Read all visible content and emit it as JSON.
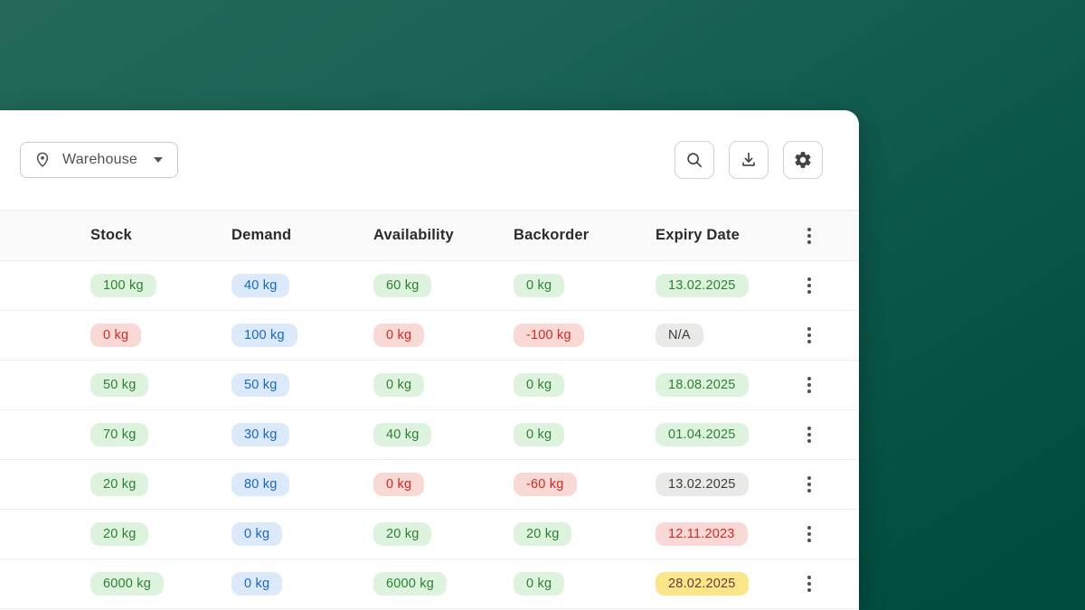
{
  "panel": {
    "toolbar": {
      "warehouse_button": {
        "label": "Warehouse",
        "icon": "location-pin-icon"
      },
      "actions": [
        {
          "name": "search",
          "icon": "search-icon"
        },
        {
          "name": "download",
          "icon": "download-icon"
        },
        {
          "name": "settings",
          "icon": "gear-icon"
        }
      ]
    },
    "table": {
      "columns": [
        "Stock",
        "Demand",
        "Availability",
        "Backorder",
        "Expiry Date"
      ],
      "rows": [
        {
          "cells": [
            {
              "text": "100 kg",
              "variant": "green"
            },
            {
              "text": "40 kg",
              "variant": "blue"
            },
            {
              "text": "60 kg",
              "variant": "green"
            },
            {
              "text": "0 kg",
              "variant": "green"
            },
            {
              "text": "13.02.2025",
              "variant": "green"
            }
          ]
        },
        {
          "cells": [
            {
              "text": "0 kg",
              "variant": "red"
            },
            {
              "text": "100 kg",
              "variant": "blue"
            },
            {
              "text": "0 kg",
              "variant": "red"
            },
            {
              "text": "-100 kg",
              "variant": "red"
            },
            {
              "text": "N/A",
              "variant": "gray"
            }
          ]
        },
        {
          "cells": [
            {
              "text": "50 kg",
              "variant": "green"
            },
            {
              "text": "50 kg",
              "variant": "blue"
            },
            {
              "text": "0 kg",
              "variant": "green"
            },
            {
              "text": "0 kg",
              "variant": "green"
            },
            {
              "text": "18.08.2025",
              "variant": "green"
            }
          ]
        },
        {
          "cells": [
            {
              "text": "70 kg",
              "variant": "green"
            },
            {
              "text": "30 kg",
              "variant": "blue"
            },
            {
              "text": "40 kg",
              "variant": "green"
            },
            {
              "text": "0 kg",
              "variant": "green"
            },
            {
              "text": "01.04.2025",
              "variant": "green"
            }
          ]
        },
        {
          "cells": [
            {
              "text": "20 kg",
              "variant": "green"
            },
            {
              "text": "80 kg",
              "variant": "blue"
            },
            {
              "text": "0 kg",
              "variant": "red"
            },
            {
              "text": "-60 kg",
              "variant": "red"
            },
            {
              "text": "13.02.2025",
              "variant": "gray"
            }
          ]
        },
        {
          "cells": [
            {
              "text": "20 kg",
              "variant": "green"
            },
            {
              "text": "0 kg",
              "variant": "blue"
            },
            {
              "text": "20 kg",
              "variant": "green"
            },
            {
              "text": "20 kg",
              "variant": "green"
            },
            {
              "text": "12.11.2023",
              "variant": "red"
            }
          ]
        },
        {
          "cells": [
            {
              "text": "6000 kg",
              "variant": "green"
            },
            {
              "text": "0 kg",
              "variant": "blue"
            },
            {
              "text": "6000 kg",
              "variant": "green"
            },
            {
              "text": "0 kg",
              "variant": "green"
            },
            {
              "text": "28.02.2025",
              "variant": "yellow"
            }
          ]
        }
      ]
    }
  },
  "colors": {
    "background_top": "#246959",
    "background_bottom": "#004c3e",
    "badge_green_bg": "#ddf3dd",
    "badge_green_text": "#2e8033",
    "badge_blue_bg": "#dbe9fb",
    "badge_blue_text": "#1668c9",
    "badge_red_bg": "#f9d9d6",
    "badge_red_text": "#d8281f",
    "badge_gray_bg": "#e9e9e7",
    "badge_gray_text": "#3c3c3c",
    "badge_yellow_bg": "#fae588",
    "badge_yellow_text": "#5d4040"
  }
}
